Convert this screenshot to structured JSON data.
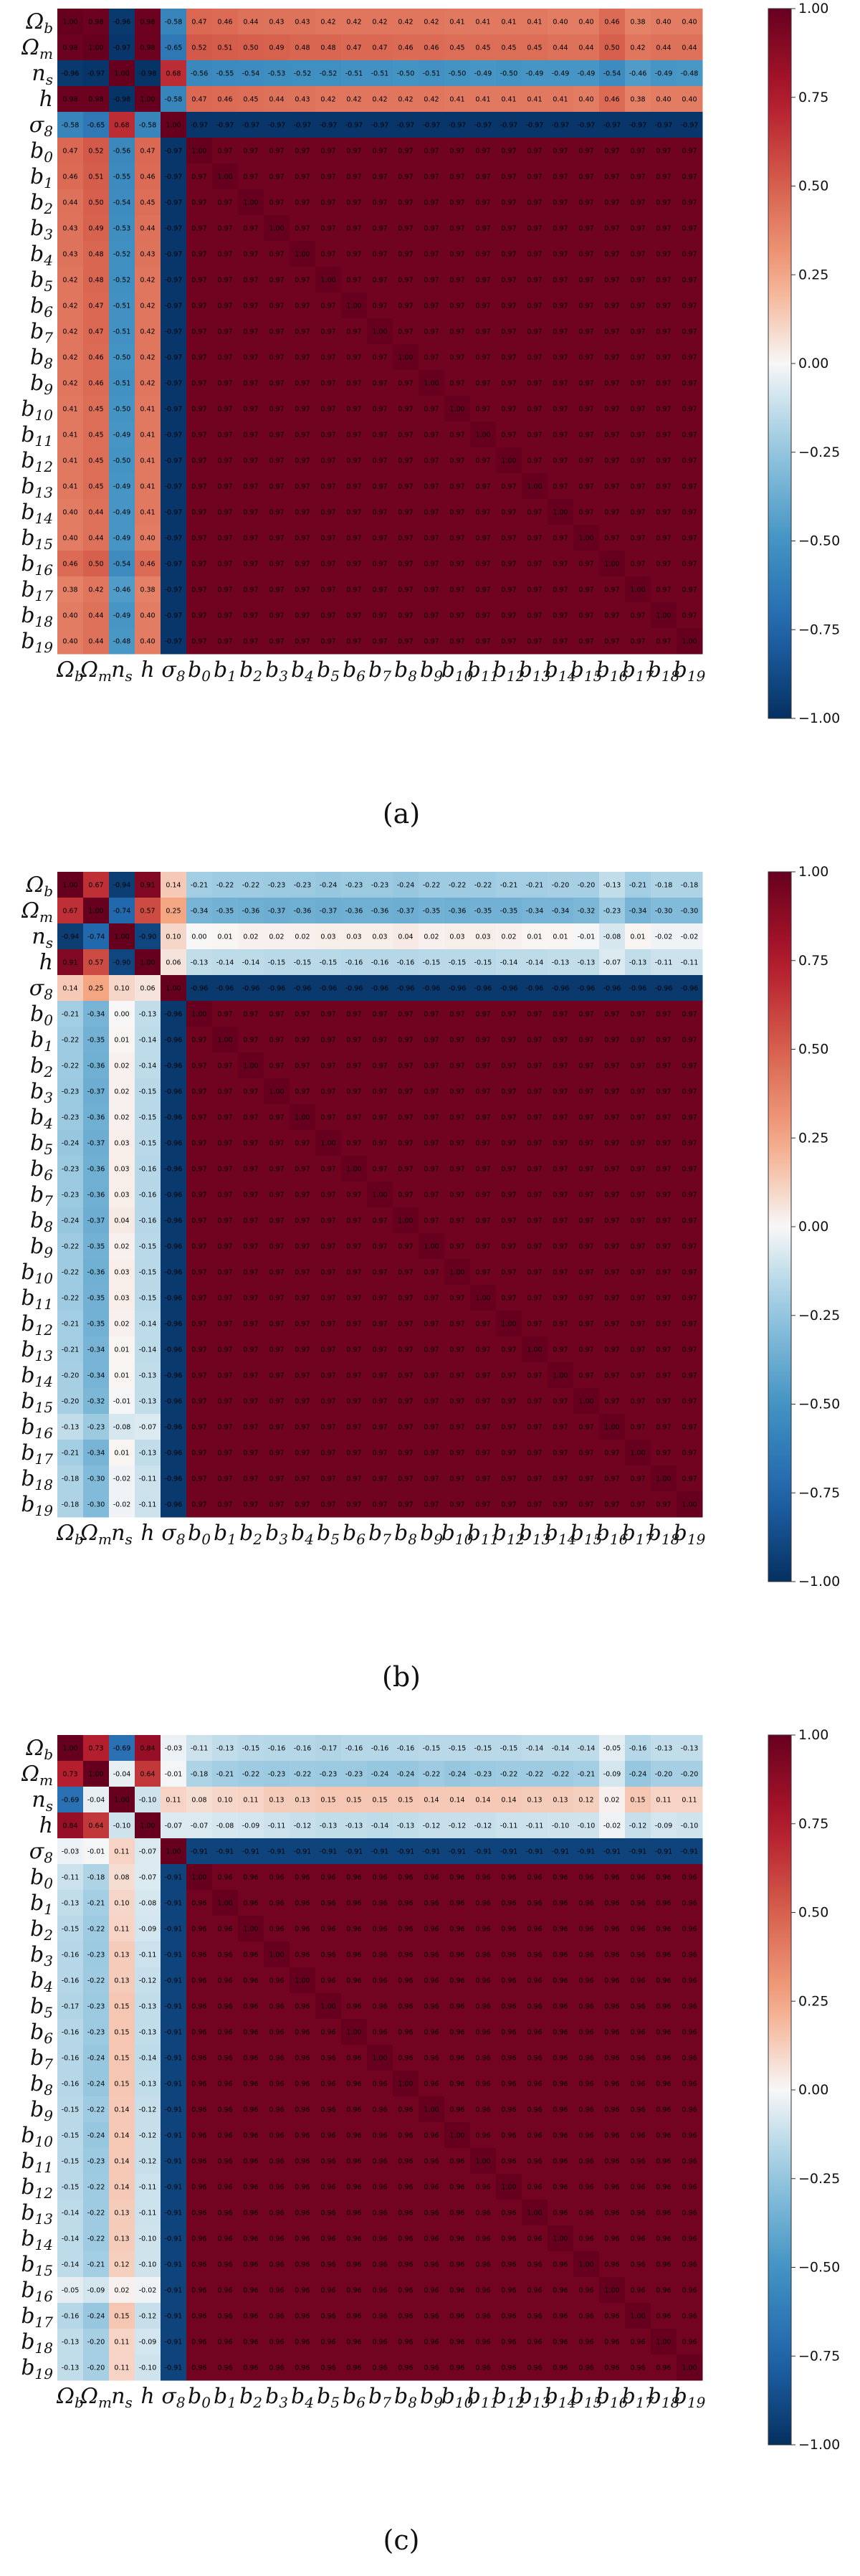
{
  "chart_data": [
    {
      "type": "heatmap",
      "panel_label": "(a)",
      "labels": [
        "Ωb",
        "Ωm",
        "ns",
        "h",
        "σ8",
        "b0",
        "b1",
        "b2",
        "b3",
        "b4",
        "b5",
        "b6",
        "b7",
        "b8",
        "b9",
        "b10",
        "b11",
        "b12",
        "b13",
        "b14",
        "b15",
        "b16",
        "b17",
        "b18",
        "b19"
      ],
      "params": {
        "ob_om": 0.98,
        "ob_ns": -0.96,
        "ob_h": 0.98,
        "om_ns": -0.97,
        "om_h": 0.98,
        "ns_h": -0.98,
        "s8": [
          -0.58,
          -0.65,
          0.68,
          -0.58
        ],
        "base": [
          [
            0.47,
            0.46,
            0.44,
            0.43,
            0.43,
            0.42,
            0.42,
            0.42,
            0.42,
            0.42,
            0.41,
            0.41,
            0.41,
            0.41,
            0.4,
            0.4,
            0.46,
            0.38,
            0.4,
            0.4
          ],
          [
            0.52,
            0.51,
            0.5,
            0.49,
            0.48,
            0.48,
            0.47,
            0.47,
            0.46,
            0.46,
            0.45,
            0.45,
            0.45,
            0.45,
            0.44,
            0.44,
            0.5,
            0.42,
            0.44,
            0.44
          ],
          [
            -0.56,
            -0.55,
            -0.54,
            -0.53,
            -0.52,
            -0.52,
            -0.51,
            -0.51,
            -0.5,
            -0.51,
            -0.5,
            -0.49,
            -0.5,
            -0.49,
            -0.49,
            -0.49,
            -0.54,
            -0.46,
            -0.49,
            -0.48
          ],
          [
            0.47,
            0.46,
            0.45,
            0.44,
            0.43,
            0.42,
            0.42,
            0.42,
            0.42,
            0.42,
            0.41,
            0.41,
            0.41,
            0.41,
            0.41,
            0.4,
            0.46,
            0.38,
            0.4,
            0.4
          ]
        ],
        "s8_b": -0.97,
        "bb": 0.97
      },
      "colorbar_ticks": [
        "1.00",
        "0.75",
        "0.50",
        "0.25",
        "0.00",
        "−0.25",
        "−0.50",
        "−0.75",
        "−1.00"
      ],
      "vmin": -1,
      "vmax": 1
    },
    {
      "type": "heatmap",
      "panel_label": "(b)",
      "labels": [
        "Ωb",
        "Ωm",
        "ns",
        "h",
        "σ8",
        "b0",
        "b1",
        "b2",
        "b3",
        "b4",
        "b5",
        "b6",
        "b7",
        "b8",
        "b9",
        "b10",
        "b11",
        "b12",
        "b13",
        "b14",
        "b15",
        "b16",
        "b17",
        "b18",
        "b19"
      ],
      "params": {
        "ob_om": 0.67,
        "ob_ns": -0.94,
        "ob_h": 0.91,
        "om_ns": -0.74,
        "om_h": 0.57,
        "ns_h": -0.9,
        "s8": [
          0.14,
          0.25,
          0.1,
          0.06
        ],
        "base": [
          [
            -0.21,
            -0.22,
            -0.22,
            -0.23,
            -0.23,
            -0.24,
            -0.23,
            -0.23,
            -0.24,
            -0.22,
            -0.22,
            -0.22,
            -0.21,
            -0.21,
            -0.2,
            -0.2,
            -0.13,
            -0.21,
            -0.18,
            -0.18
          ],
          [
            -0.34,
            -0.35,
            -0.36,
            -0.37,
            -0.36,
            -0.37,
            -0.36,
            -0.36,
            -0.37,
            -0.35,
            -0.36,
            -0.35,
            -0.35,
            -0.34,
            -0.34,
            -0.32,
            -0.23,
            -0.34,
            -0.3,
            -0.3
          ],
          [
            -0.0,
            0.01,
            0.02,
            0.02,
            0.02,
            0.03,
            0.03,
            0.03,
            0.04,
            0.02,
            0.03,
            0.03,
            0.02,
            0.01,
            0.01,
            -0.01,
            -0.08,
            0.01,
            -0.02,
            -0.02
          ],
          [
            -0.13,
            -0.14,
            -0.14,
            -0.15,
            -0.15,
            -0.15,
            -0.16,
            -0.16,
            -0.16,
            -0.15,
            -0.15,
            -0.15,
            -0.14,
            -0.14,
            -0.13,
            -0.13,
            -0.07,
            -0.13,
            -0.11,
            -0.11
          ]
        ],
        "s8_b": -0.96,
        "bb": 0.97
      },
      "colorbar_ticks": [
        "1.00",
        "0.75",
        "0.50",
        "0.25",
        "0.00",
        "−0.25",
        "−0.50",
        "−0.75",
        "−1.00"
      ],
      "vmin": -1,
      "vmax": 1
    },
    {
      "type": "heatmap",
      "panel_label": "(c)",
      "labels": [
        "Ωb",
        "Ωm",
        "ns",
        "h",
        "σ8",
        "b0",
        "b1",
        "b2",
        "b3",
        "b4",
        "b5",
        "b6",
        "b7",
        "b8",
        "b9",
        "b10",
        "b11",
        "b12",
        "b13",
        "b14",
        "b15",
        "b16",
        "b17",
        "b18",
        "b19"
      ],
      "params": {
        "ob_om": 0.73,
        "ob_ns": -0.69,
        "ob_h": 0.84,
        "om_ns": -0.04,
        "om_h": 0.64,
        "ns_h": -0.1,
        "s8": [
          -0.03,
          -0.01,
          0.11,
          -0.07
        ],
        "base": [
          [
            -0.11,
            -0.13,
            -0.15,
            -0.16,
            -0.16,
            -0.17,
            -0.16,
            -0.16,
            -0.16,
            -0.15,
            -0.15,
            -0.15,
            -0.15,
            -0.14,
            -0.14,
            -0.14,
            -0.05,
            -0.16,
            -0.13,
            -0.13
          ],
          [
            -0.18,
            -0.21,
            -0.22,
            -0.23,
            -0.22,
            -0.23,
            -0.23,
            -0.24,
            -0.24,
            -0.22,
            -0.24,
            -0.23,
            -0.22,
            -0.22,
            -0.22,
            -0.21,
            -0.09,
            -0.24,
            -0.2,
            -0.2
          ],
          [
            0.08,
            0.1,
            0.11,
            0.13,
            0.13,
            0.15,
            0.15,
            0.15,
            0.15,
            0.14,
            0.14,
            0.14,
            0.14,
            0.13,
            0.13,
            0.12,
            0.02,
            0.15,
            0.11,
            0.11
          ],
          [
            -0.07,
            -0.08,
            -0.09,
            -0.11,
            -0.12,
            -0.13,
            -0.13,
            -0.14,
            -0.13,
            -0.12,
            -0.12,
            -0.12,
            -0.11,
            -0.11,
            -0.1,
            -0.1,
            -0.02,
            -0.12,
            -0.09,
            -0.1
          ]
        ],
        "s8_b": -0.91,
        "bb": 0.96
      },
      "colorbar_ticks": [
        "1.00",
        "0.75",
        "0.50",
        "0.25",
        "0.00",
        "−0.25",
        "−0.50",
        "−0.75",
        "−1.00"
      ],
      "vmin": -1,
      "vmax": 1
    }
  ]
}
